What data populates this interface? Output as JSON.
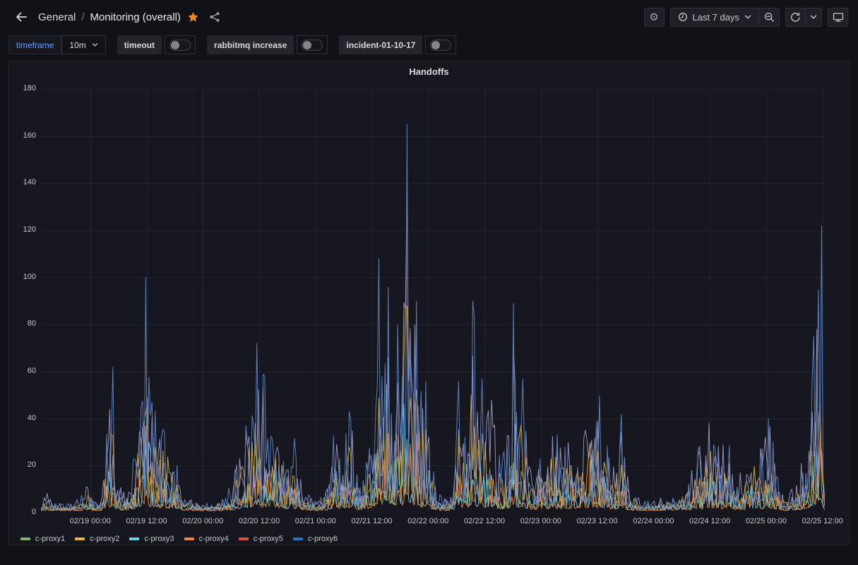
{
  "colors": {
    "background": "#111217",
    "panel_background": "#16171e",
    "border": "#26282f",
    "text": "#d8d9da",
    "text_secondary": "#9da0a8",
    "accent_star": "#e8872b",
    "variable_link": "#6e9fff",
    "grid": "rgba(204,204,220,0.07)"
  },
  "nav": {
    "breadcrumb": {
      "root": "General",
      "separator": "/",
      "page": "Monitoring (overall)"
    },
    "time_picker": {
      "label": "Last 7 days"
    }
  },
  "submenu": {
    "variable": {
      "label": "timeframe",
      "value": "10m"
    },
    "toggles": [
      {
        "label": "timeout",
        "state": "off"
      },
      {
        "label": "rabbitmq increase",
        "state": "off"
      },
      {
        "label": "incident-01-10-17",
        "state": "off"
      }
    ]
  },
  "panel": {
    "title": "Handoffs"
  },
  "chart_data": {
    "type": "line",
    "title": "Handoffs",
    "xlabel": "",
    "ylabel": "",
    "ylim": [
      0,
      180
    ],
    "yticks": [
      0,
      20,
      40,
      60,
      80,
      100,
      120,
      140,
      160,
      180
    ],
    "grid": true,
    "legend_position": "bottom",
    "x_domain_hours": [
      0,
      167
    ],
    "x_domain_note": "hours since 02/18 13:30, last 7 days window",
    "xticks": [
      {
        "hour": 10.5,
        "label": "02/19 00:00"
      },
      {
        "hour": 22.5,
        "label": "02/19 12:00"
      },
      {
        "hour": 34.5,
        "label": "02/20 00:00"
      },
      {
        "hour": 46.5,
        "label": "02/20 12:00"
      },
      {
        "hour": 58.5,
        "label": "02/21 00:00"
      },
      {
        "hour": 70.5,
        "label": "02/21 12:00"
      },
      {
        "hour": 82.5,
        "label": "02/22 00:00"
      },
      {
        "hour": 94.5,
        "label": "02/22 12:00"
      },
      {
        "hour": 106.5,
        "label": "02/23 00:00"
      },
      {
        "hour": 118.5,
        "label": "02/23 12:00"
      },
      {
        "hour": 130.5,
        "label": "02/24 00:00"
      },
      {
        "hour": 142.5,
        "label": "02/24 12:00"
      },
      {
        "hour": 154.5,
        "label": "02/25 00:00"
      },
      {
        "hour": 166.5,
        "label": "02/25 12:00"
      }
    ],
    "sample_step_hours": 0.3333,
    "noise_seed": 20,
    "peak_force_threshold": 56,
    "envelope_points": [
      [
        0,
        3
      ],
      [
        1.2,
        8
      ],
      [
        2.5,
        3
      ],
      [
        7,
        3
      ],
      [
        8.5,
        6
      ],
      [
        9.8,
        11
      ],
      [
        11,
        4
      ],
      [
        13,
        6
      ],
      [
        15.3,
        62
      ],
      [
        16.2,
        12
      ],
      [
        18,
        8
      ],
      [
        20,
        22
      ],
      [
        21.5,
        55
      ],
      [
        22.4,
        100
      ],
      [
        23.2,
        45
      ],
      [
        24,
        55
      ],
      [
        25,
        40
      ],
      [
        26,
        46
      ],
      [
        27,
        34
      ],
      [
        28.5,
        24
      ],
      [
        30,
        10
      ],
      [
        31.5,
        5
      ],
      [
        33,
        3
      ],
      [
        36,
        3
      ],
      [
        39,
        5
      ],
      [
        41,
        12
      ],
      [
        42.5,
        28
      ],
      [
        44,
        36
      ],
      [
        45,
        48
      ],
      [
        46,
        72
      ],
      [
        46.8,
        44
      ],
      [
        47.5,
        58
      ],
      [
        48.3,
        46
      ],
      [
        49,
        30
      ],
      [
        50,
        43
      ],
      [
        51,
        34
      ],
      [
        52,
        30
      ],
      [
        53,
        22
      ],
      [
        54,
        28
      ],
      [
        55,
        17
      ],
      [
        56,
        10
      ],
      [
        57.5,
        5
      ],
      [
        59,
        4
      ],
      [
        61,
        10
      ],
      [
        62,
        26
      ],
      [
        63,
        43
      ],
      [
        64,
        24
      ],
      [
        65,
        30
      ],
      [
        66,
        44
      ],
      [
        67,
        24
      ],
      [
        68,
        12
      ],
      [
        69,
        18
      ],
      [
        70,
        32
      ],
      [
        71,
        55
      ],
      [
        72,
        108
      ],
      [
        72.8,
        58
      ],
      [
        74,
        96
      ],
      [
        74.8,
        52
      ],
      [
        76,
        80
      ],
      [
        77,
        58
      ],
      [
        78,
        165
      ],
      [
        78.8,
        70
      ],
      [
        80,
        90
      ],
      [
        80.8,
        48
      ],
      [
        82,
        56
      ],
      [
        83,
        24
      ],
      [
        84.5,
        8
      ],
      [
        86,
        5
      ],
      [
        88,
        10
      ],
      [
        89,
        56
      ],
      [
        90,
        34
      ],
      [
        91,
        45
      ],
      [
        92,
        90
      ],
      [
        93,
        44
      ],
      [
        94,
        57
      ],
      [
        95,
        38
      ],
      [
        96,
        50
      ],
      [
        97,
        30
      ],
      [
        98,
        20
      ],
      [
        99,
        28
      ],
      [
        100,
        40
      ],
      [
        100.8,
        89
      ],
      [
        101.6,
        44
      ],
      [
        102.5,
        57
      ],
      [
        103.5,
        28
      ],
      [
        104.5,
        14
      ],
      [
        106,
        20
      ],
      [
        107,
        34
      ],
      [
        108,
        24
      ],
      [
        109,
        40
      ],
      [
        110,
        30
      ],
      [
        111,
        24
      ],
      [
        112,
        30
      ],
      [
        113,
        27
      ],
      [
        114,
        34
      ],
      [
        115,
        45
      ],
      [
        116,
        34
      ],
      [
        117,
        50
      ],
      [
        118,
        40
      ],
      [
        119,
        47
      ],
      [
        120,
        32
      ],
      [
        121,
        24
      ],
      [
        122,
        20
      ],
      [
        123,
        28
      ],
      [
        124,
        42
      ],
      [
        125,
        14
      ],
      [
        126,
        8
      ],
      [
        128,
        5
      ],
      [
        130,
        4
      ],
      [
        132,
        6
      ],
      [
        134,
        5
      ],
      [
        136,
        8
      ],
      [
        138,
        12
      ],
      [
        139,
        22
      ],
      [
        140,
        33
      ],
      [
        141,
        22
      ],
      [
        142,
        48
      ],
      [
        143,
        30
      ],
      [
        144,
        40
      ],
      [
        145,
        28
      ],
      [
        146,
        35
      ],
      [
        147,
        22
      ],
      [
        148,
        12
      ],
      [
        149,
        16
      ],
      [
        150,
        18
      ],
      [
        151,
        22
      ],
      [
        152,
        28
      ],
      [
        153,
        24
      ],
      [
        154,
        30
      ],
      [
        155.4,
        37
      ],
      [
        156.5,
        20
      ],
      [
        157.5,
        10
      ],
      [
        158.5,
        6
      ],
      [
        159.5,
        8
      ],
      [
        160.5,
        10
      ],
      [
        161.5,
        15
      ],
      [
        162.5,
        26
      ],
      [
        163.5,
        40
      ],
      [
        164.3,
        55
      ],
      [
        164.8,
        75
      ],
      [
        165.5,
        95
      ],
      [
        166.2,
        122
      ],
      [
        166.6,
        55
      ],
      [
        167,
        12
      ]
    ],
    "series": [
      {
        "name": "c-proxy1",
        "color": "#7EB26D",
        "line_color": "#7da764",
        "factor": 0.3,
        "exponent": 1.3,
        "base": 1.5,
        "cap": 27,
        "force_peaks": false
      },
      {
        "name": "c-proxy2",
        "color": "#EAB839",
        "line_color": "#d9ab2e",
        "factor": 0.62,
        "exponent": 1.5,
        "base": 1.0,
        "cap": 120,
        "force_peaks": false
      },
      {
        "name": "c-proxy3",
        "color": "#6ED0E0",
        "line_color": "#6ED0E0",
        "factor": 0.48,
        "exponent": 3.2,
        "base": 0.8,
        "cap": 95,
        "force_peaks": false
      },
      {
        "name": "c-proxy4",
        "color": "#EF843C",
        "line_color": "#EF843C",
        "factor": 0.4,
        "exponent": 3.4,
        "base": 0.8,
        "cap": 85,
        "force_peaks": false
      },
      {
        "name": "c-proxy5",
        "color": "#E24D42",
        "line_color": "#9a95c2",
        "factor": 0.9,
        "exponent": 1.5,
        "base": 1.2,
        "cap": 155,
        "force_peaks": false
      },
      {
        "name": "c-proxy6",
        "color": "#1F78C1",
        "line_color": "#5d85c6",
        "factor": 1.0,
        "exponent": 2.4,
        "base": 1.0,
        "cap": 176,
        "force_peaks": true
      }
    ]
  }
}
